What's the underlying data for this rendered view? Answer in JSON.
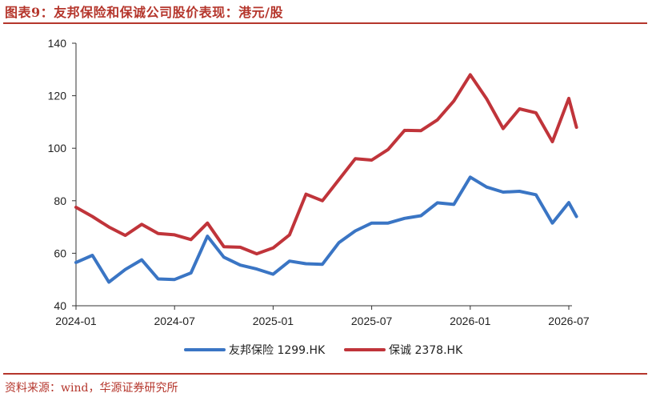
{
  "title": "图表9：友邦保险和保诚公司股价表现：港元/股",
  "source": "资料来源：wind，华源证券研究所",
  "chart_data": {
    "type": "line",
    "title": "",
    "xlabel": "",
    "ylabel": "",
    "ylim": [
      40,
      140
    ],
    "yticks": [
      40,
      60,
      80,
      100,
      120,
      140
    ],
    "xticks": [
      "2024-01",
      "2024-07",
      "2025-01",
      "2025-07",
      "2026-01",
      "2026-07"
    ],
    "legend_position": "bottom",
    "grid": false,
    "x": [
      "2024-01",
      "2024-02",
      "2024-03",
      "2024-04",
      "2024-05",
      "2024-06",
      "2024-07",
      "2024-08",
      "2024-09",
      "2024-10",
      "2024-11",
      "2024-12",
      "2025-01",
      "2025-02",
      "2025-03",
      "2025-04",
      "2025-05",
      "2025-06",
      "2025-07",
      "2025-08",
      "2025-09",
      "2025-10",
      "2025-11",
      "2025-12",
      "2026-01",
      "2026-02",
      "2026-03",
      "2026-04",
      "2026-05",
      "2026-06",
      "2026-07",
      "2026-07-15"
    ],
    "series": [
      {
        "name": "友邦保险 1299.HK",
        "color": "#3a75c4",
        "values": [
          56.5,
          59.2,
          49.0,
          53.8,
          57.5,
          50.2,
          50.0,
          52.5,
          66.5,
          58.5,
          55.5,
          54.0,
          52.0,
          57.0,
          56.0,
          55.8,
          64.0,
          68.5,
          71.5,
          71.5,
          73.3,
          74.3,
          79.2,
          78.6,
          89.0,
          85.2,
          83.3,
          83.6,
          82.3,
          71.5,
          79.3,
          74.0
        ]
      },
      {
        "name": "保诚 2378.HK",
        "color": "#c0343a",
        "values": [
          77.5,
          74.0,
          70.0,
          66.8,
          71.0,
          67.5,
          67.0,
          65.2,
          71.5,
          62.5,
          62.3,
          59.8,
          62.0,
          67.0,
          82.5,
          80.0,
          88.0,
          96.0,
          95.5,
          99.5,
          106.8,
          106.7,
          110.8,
          118.0,
          128.0,
          118.8,
          107.5,
          115.0,
          113.5,
          102.5,
          119.0,
          108.0
        ]
      }
    ]
  }
}
